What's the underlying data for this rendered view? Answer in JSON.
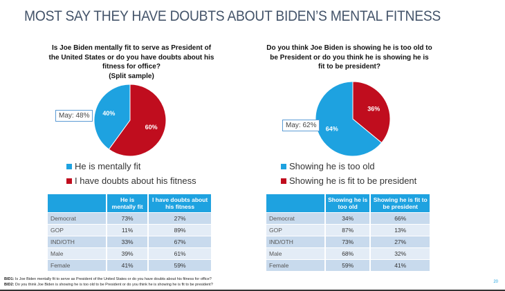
{
  "title": "MOST SAY THEY HAVE DOUBTS ABOUT BIDEN’S MENTAL FITNESS",
  "colors": {
    "blue": "#1ea2e0",
    "red": "#c00d1e",
    "header": "#1ea2e0",
    "row_dark": "#c8daed",
    "row_light": "#e3ecf6",
    "title": "#44546a"
  },
  "chart_data": [
    {
      "type": "pie",
      "title": "Is Joe Biden mentally fit to serve as President of the United States or do you have doubts about his fitness for office? (Split sample)",
      "categories": [
        "He is mentally fit",
        "I have doubts about his fitness"
      ],
      "values": [
        40,
        60
      ],
      "data_labels": [
        "40%",
        "60%"
      ],
      "colors": [
        "#1ea2e0",
        "#c00d1e"
      ],
      "annotation": "May: 48%",
      "legend_position": "bottom"
    },
    {
      "type": "pie",
      "title": "Do you think Joe Biden is showing he is too old to be President or do you think he is showing he is fit to be president?",
      "categories": [
        "Showing he is too old",
        "Showing he is fit to be president"
      ],
      "values": [
        64,
        36
      ],
      "data_labels": [
        "64%",
        "36%"
      ],
      "colors": [
        "#1ea2e0",
        "#c00d1e"
      ],
      "annotation": "May: 62%",
      "legend_position": "bottom"
    },
    {
      "type": "table",
      "columns": [
        "",
        "He is mentally fit",
        "I have doubts about his fitness"
      ],
      "rows": [
        [
          "Democrat",
          "73%",
          "27%"
        ],
        [
          "GOP",
          "11%",
          "89%"
        ],
        [
          "IND/OTH",
          "33%",
          "67%"
        ],
        [
          "Male",
          "39%",
          "61%"
        ],
        [
          "Female",
          "41%",
          "59%"
        ]
      ]
    },
    {
      "type": "table",
      "columns": [
        "",
        "Showing he is too old",
        "Showing he is fit to be president"
      ],
      "rows": [
        [
          "Democrat",
          "34%",
          "66%"
        ],
        [
          "GOP",
          "87%",
          "13%"
        ],
        [
          "IND/OTH",
          "73%",
          "27%"
        ],
        [
          "Male",
          "68%",
          "32%"
        ],
        [
          "Female",
          "59%",
          "41%"
        ]
      ]
    }
  ],
  "left": {
    "question": "Is Joe Biden mentally fit to serve as President of the United States or do you have doubts about his fitness for office?",
    "question_note": "(Split sample)",
    "callout": "May: 48%",
    "legend": [
      "He is mentally fit",
      "I have doubts about his fitness"
    ],
    "table": {
      "headers": [
        "He is mentally fit",
        "I have doubts about his fitness"
      ],
      "rows": [
        {
          "label": "Democrat",
          "a": "73%",
          "b": "27%"
        },
        {
          "label": "GOP",
          "a": "11%",
          "b": "89%"
        },
        {
          "label": "IND/OTH",
          "a": "33%",
          "b": "67%"
        },
        {
          "label": "Male",
          "a": "39%",
          "b": "61%"
        },
        {
          "label": "Female",
          "a": "41%",
          "b": "59%"
        }
      ]
    }
  },
  "right": {
    "question": "Do you think Joe Biden is showing he is too old to be President or do you think he is showing he is fit to be president?",
    "callout": "May: 62%",
    "legend": [
      "Showing he is too old",
      "Showing he is fit to be president"
    ],
    "table": {
      "headers": [
        "Showing he is too old",
        "Showing he is fit to be president"
      ],
      "rows": [
        {
          "label": "Democrat",
          "a": "34%",
          "b": "66%"
        },
        {
          "label": "GOP",
          "a": "87%",
          "b": "13%"
        },
        {
          "label": "IND/OTH",
          "a": "73%",
          "b": "27%"
        },
        {
          "label": "Male",
          "a": "68%",
          "b": "32%"
        },
        {
          "label": "Female",
          "a": "59%",
          "b": "41%"
        }
      ]
    }
  },
  "footnotes": [
    {
      "code": "BID1:",
      "text": " Is Joe Biden mentally fit to serve as President of the United States or do you have doubts about his fitness for office?"
    },
    {
      "code": "BID2:",
      "text": " Do you think Joe Biden is showing he is too old to be President or do you think he is showing he is fit to be president?"
    }
  ],
  "page_number": "20"
}
